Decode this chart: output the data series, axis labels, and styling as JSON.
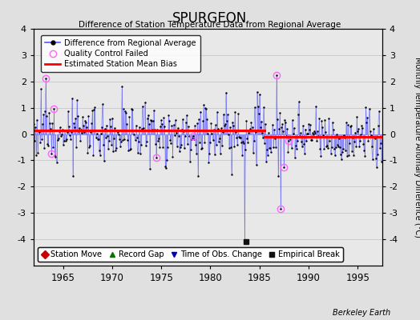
{
  "title": "SPURGEON",
  "subtitle": "Difference of Station Temperature Data from Regional Average",
  "ylabel": "Monthly Temperature Anomaly Difference (°C)",
  "xlabel_years": [
    1965,
    1970,
    1975,
    1980,
    1985,
    1990,
    1995
  ],
  "xmin": 1962.0,
  "xmax": 1997.5,
  "ymin": -5,
  "ymax": 4,
  "yticks_left": [
    -4,
    -3,
    -2,
    -1,
    0,
    1,
    2,
    3,
    4
  ],
  "yticks_right": [
    -4,
    -3,
    -2,
    -1,
    0,
    1,
    2,
    3,
    4
  ],
  "bias_line_y1": 0.15,
  "bias_line_y2": -0.1,
  "bias_break_x": 1985.5,
  "background_color": "#e0e0e0",
  "plot_bg_color": "#e8e8e8",
  "line_color": "#5555ff",
  "dot_color": "#000000",
  "bias_color": "#ff0000",
  "qc_color": "#ff66ff",
  "station_move_color": "#cc0000",
  "record_gap_color": "#007700",
  "tobs_color": "#0000bb",
  "empirical_color": "#111111",
  "watermark": "Berkeley Earth",
  "empirical_break_x": 1983.6,
  "empirical_break_y": -4.1,
  "seed": 42
}
